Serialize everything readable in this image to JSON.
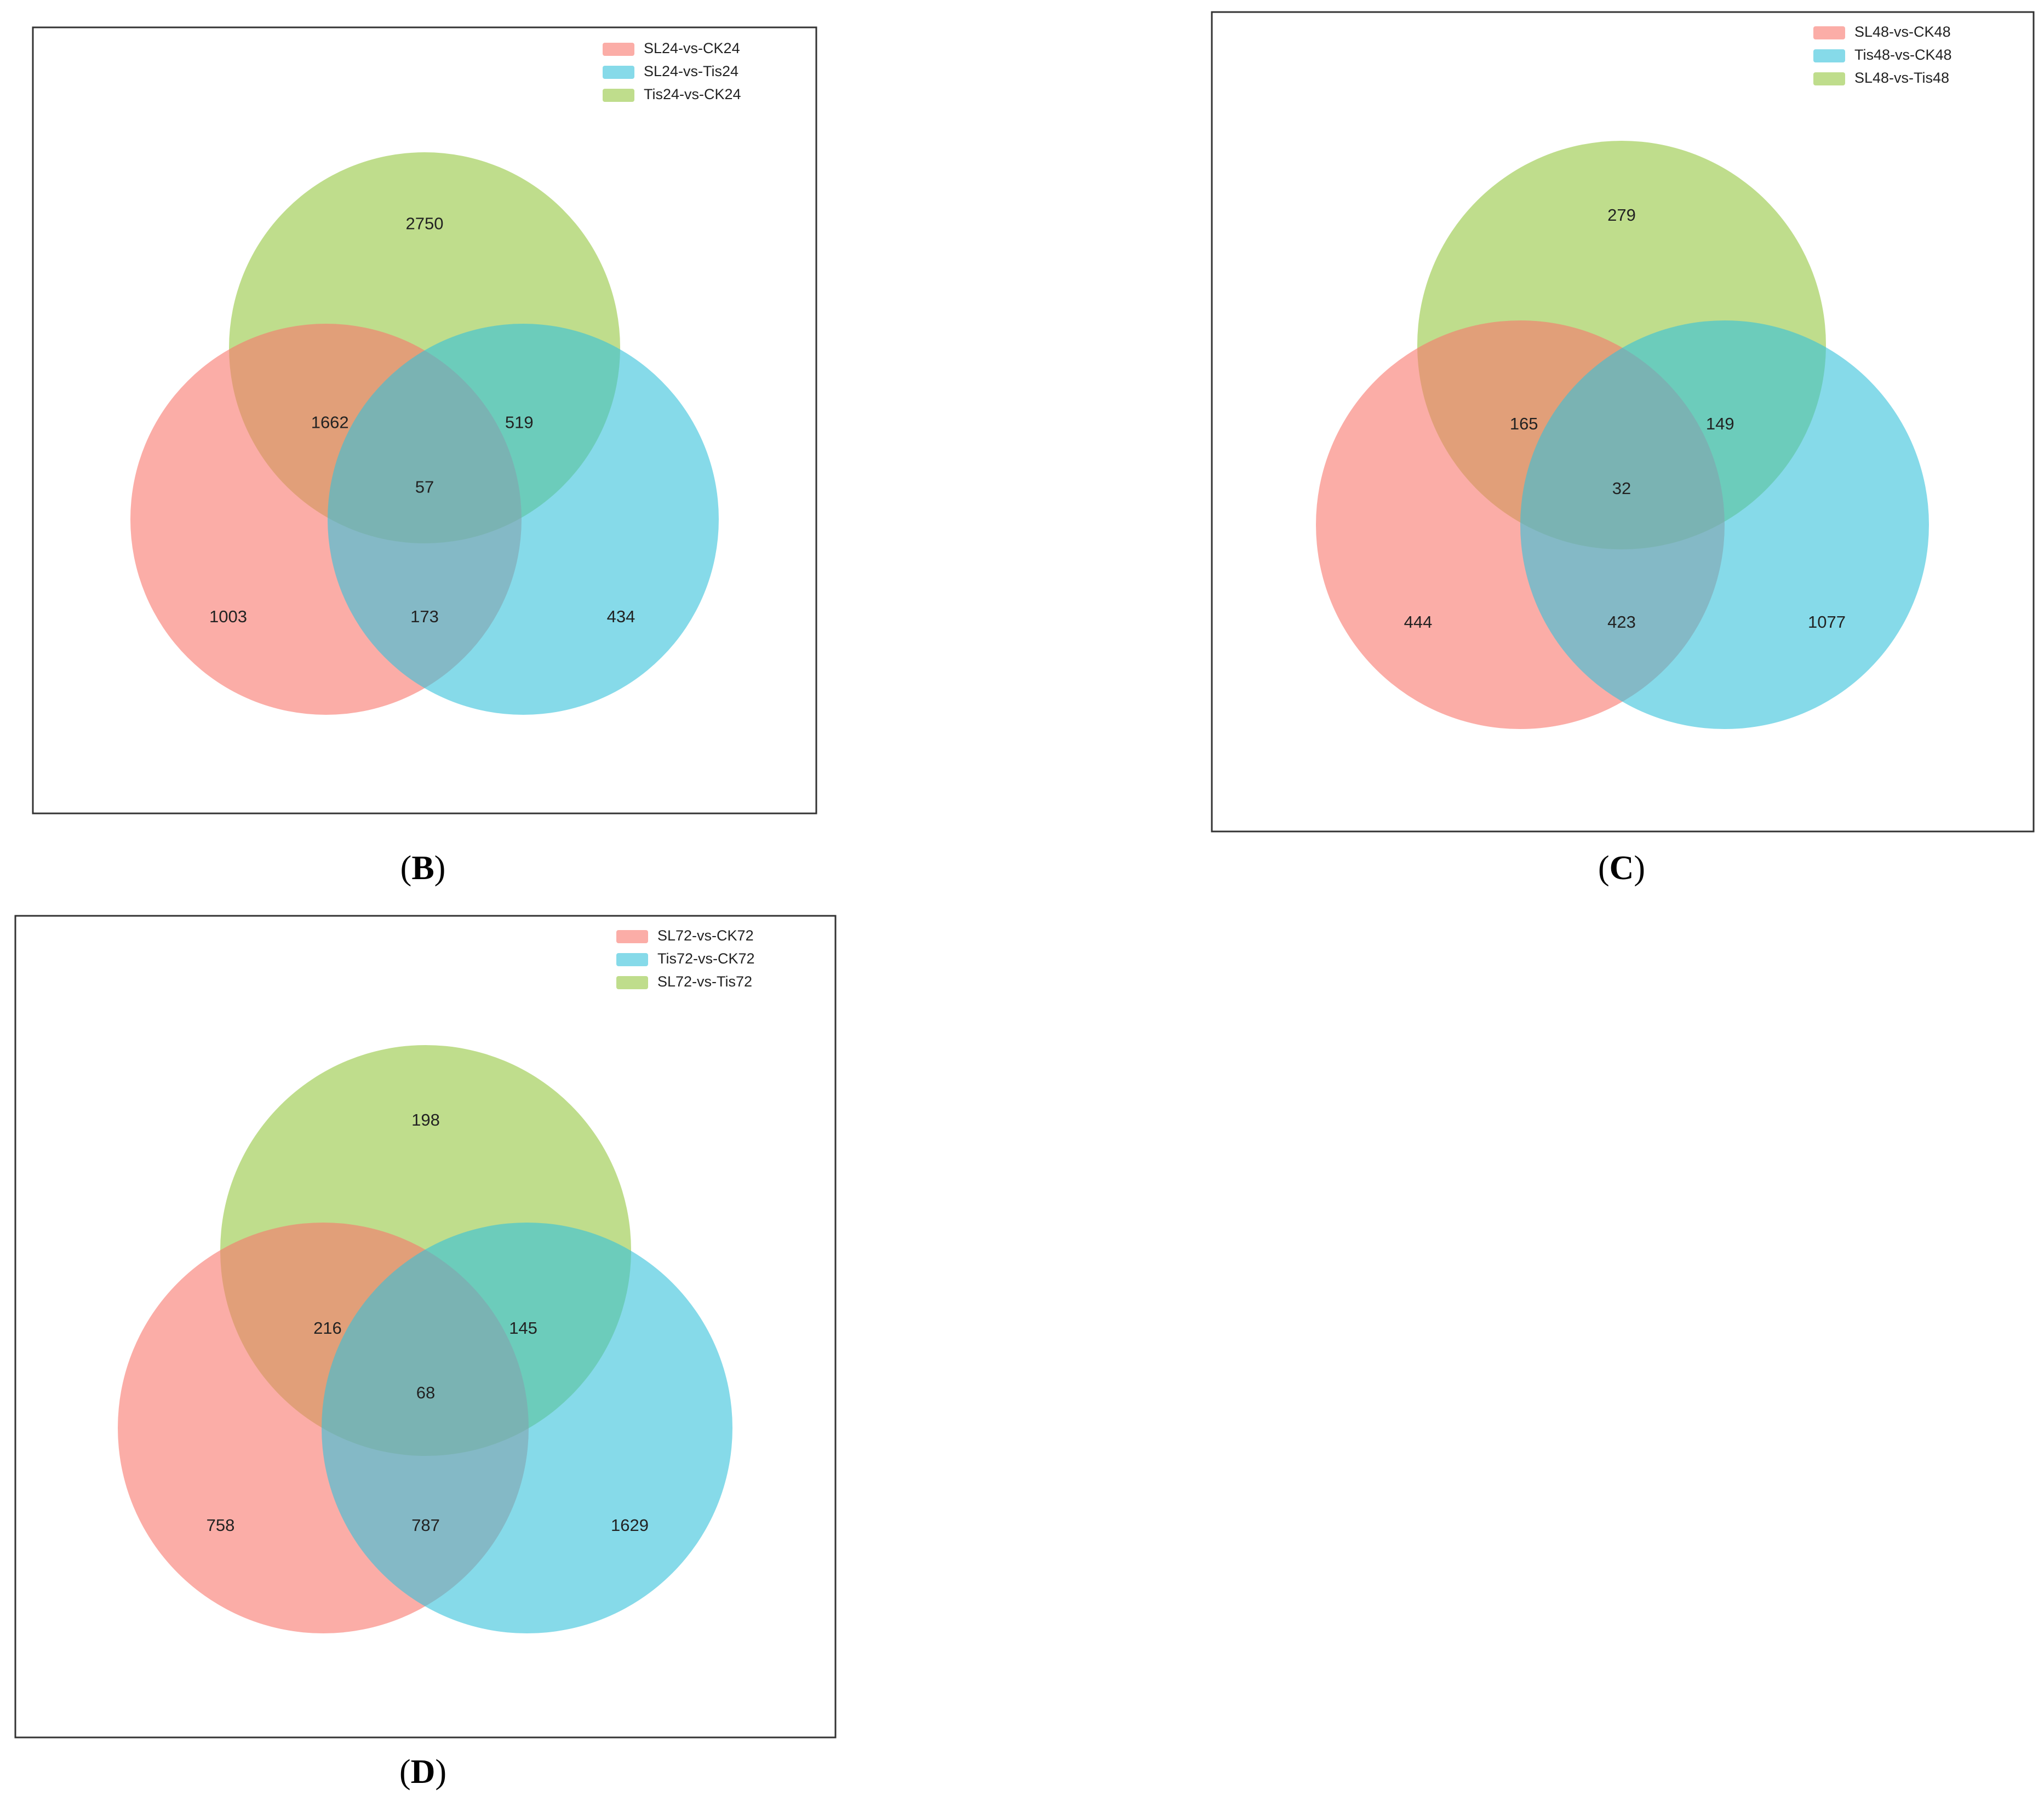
{
  "colors": {
    "red": "#f8766d",
    "blue": "#36c2da",
    "green": "#94c73f",
    "frame": "#333333"
  },
  "panels": [
    {
      "caption": "B",
      "legend": [
        {
          "label": "SL24-vs-CK24",
          "color": "red"
        },
        {
          "label": "SL24-vs-Tis24",
          "color": "blue"
        },
        {
          "label": "Tis24-vs-CK24",
          "color": "green"
        }
      ],
      "counts": {
        "green_only": "2750",
        "red_green": "1662",
        "blue_green": "519",
        "all": "57",
        "red_only": "1003",
        "red_blue": "173",
        "blue_only": "434"
      }
    },
    {
      "caption": "C",
      "legend": [
        {
          "label": "SL48-vs-CK48",
          "color": "red"
        },
        {
          "label": "Tis48-vs-CK48",
          "color": "blue"
        },
        {
          "label": "SL48-vs-Tis48",
          "color": "green"
        }
      ],
      "counts": {
        "green_only": "279",
        "red_green": "165",
        "blue_green": "149",
        "all": "32",
        "red_only": "444",
        "red_blue": "423",
        "blue_only": "1077"
      }
    },
    {
      "caption": "D",
      "legend": [
        {
          "label": "SL72-vs-CK72",
          "color": "red"
        },
        {
          "label": "Tis72-vs-CK72",
          "color": "blue"
        },
        {
          "label": "SL72-vs-Tis72",
          "color": "green"
        }
      ],
      "counts": {
        "green_only": "198",
        "red_green": "216",
        "blue_green": "145",
        "all": "68",
        "red_only": "758",
        "red_blue": "787",
        "blue_only": "1629"
      }
    }
  ]
}
